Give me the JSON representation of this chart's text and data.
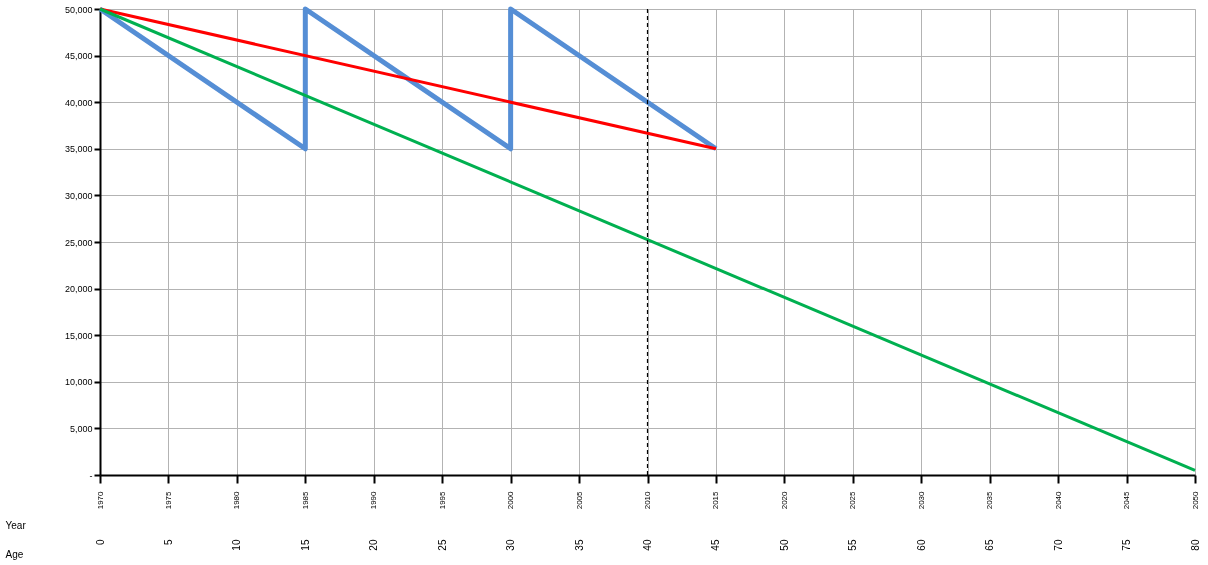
{
  "chart_data": {
    "type": "line",
    "xlabel": "Year",
    "x2label": "Age",
    "xlim": [
      1970,
      2050
    ],
    "xticks": [
      1970,
      1975,
      1980,
      1985,
      1990,
      1995,
      2000,
      2005,
      2010,
      2015,
      2020,
      2025,
      2030,
      2035,
      2040,
      2045,
      2050
    ],
    "x2lim": [
      0,
      80
    ],
    "x2ticks": [
      0,
      5,
      10,
      15,
      20,
      25,
      30,
      35,
      40,
      45,
      50,
      55,
      60,
      65,
      70,
      75,
      80
    ],
    "ylim": [
      0,
      50000
    ],
    "yticks": [
      {
        "value": 0,
        "label": "-"
      },
      {
        "value": 5000,
        "label": "5,000"
      },
      {
        "value": 10000,
        "label": "10,000"
      },
      {
        "value": 15000,
        "label": "15,000"
      },
      {
        "value": 20000,
        "label": "20,000"
      },
      {
        "value": 25000,
        "label": "25,000"
      },
      {
        "value": 30000,
        "label": "30,000"
      },
      {
        "value": 35000,
        "label": "35,000"
      },
      {
        "value": 40000,
        "label": "40,000"
      },
      {
        "value": 45000,
        "label": "45,000"
      },
      {
        "value": 50000,
        "label": "50,000"
      }
    ],
    "grid": true,
    "marker": "none",
    "line_style": "solid",
    "ref_lines": [
      {
        "axis": "x",
        "value": 2010,
        "color": "#000000",
        "line_style": "dashed"
      }
    ],
    "series": [
      {
        "color": "#558ed5",
        "x": [
          1970,
          1985,
          1985,
          2000,
          2000,
          2015
        ],
        "values": [
          50000,
          35000,
          50000,
          35000,
          50000,
          35000
        ]
      },
      {
        "color": "#ff0000",
        "x": [
          1970,
          2015
        ],
        "values": [
          50000,
          35000
        ]
      },
      {
        "color": "#00b050",
        "x": [
          1970,
          2050
        ],
        "values": [
          50000,
          500
        ]
      }
    ]
  }
}
